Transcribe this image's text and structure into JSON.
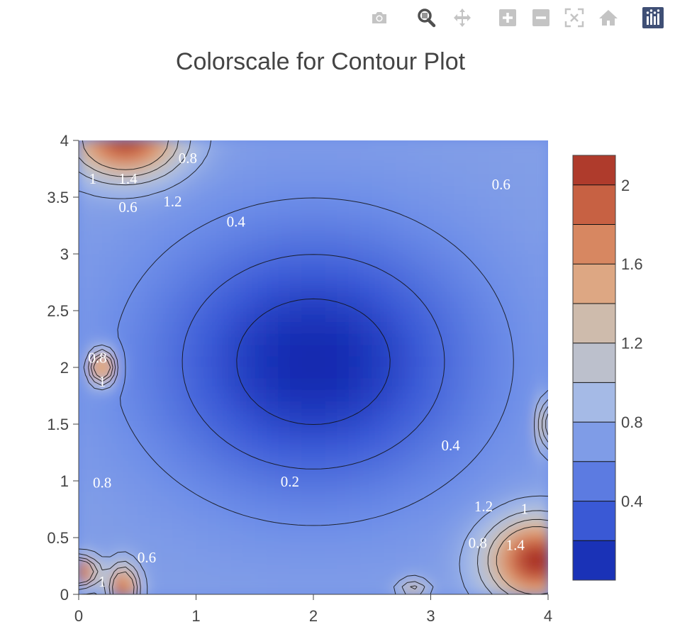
{
  "modebar": {
    "buttons": [
      {
        "name": "camera-icon",
        "title": "Download plot as a png"
      },
      {
        "name": "zoom-icon",
        "title": "Zoom"
      },
      {
        "name": "pan-icon",
        "title": "Pan"
      },
      {
        "name": "zoom-in-icon",
        "title": "Zoom in"
      },
      {
        "name": "zoom-out-icon",
        "title": "Zoom out"
      },
      {
        "name": "autoscale-icon",
        "title": "Autoscale"
      },
      {
        "name": "home-icon",
        "title": "Reset axes"
      },
      {
        "name": "plotly-logo-icon",
        "title": "Produced with Plotly"
      }
    ],
    "icon_color": "#c4c4c4",
    "active_color": "#505050",
    "logo_color": "#3f4f75"
  },
  "chart_data": {
    "type": "contour",
    "title": "Colorscale for Contour Plot",
    "xlabel": "",
    "ylabel": "",
    "xlim": [
      0,
      4
    ],
    "ylim": [
      0,
      4
    ],
    "x_ticks": [
      "0",
      "1",
      "2",
      "3",
      "4"
    ],
    "y_ticks": [
      "0",
      "0.5",
      "1",
      "1.5",
      "2",
      "2.5",
      "3",
      "3.5",
      "4"
    ],
    "colorbar": {
      "range": [
        0,
        2.15
      ],
      "ticks": [
        "0.4",
        "0.8",
        "1.2",
        "1.6",
        "2"
      ],
      "colorscale": [
        "#0a1fa8",
        "#3b5ad6",
        "#6f8fe8",
        "#a9bde6",
        "#c9c2ba",
        "#e0a47c",
        "#cf6e4a",
        "#a52a22"
      ]
    },
    "contour_levels": [
      0.2,
      0.4,
      0.6,
      0.8,
      1,
      1.2,
      1.4
    ],
    "contour_labels": [
      {
        "text": "1",
        "x": 0.12,
        "y": 3.65
      },
      {
        "text": "1.4",
        "x": 0.42,
        "y": 3.65
      },
      {
        "text": "0.8",
        "x": 0.93,
        "y": 3.83
      },
      {
        "text": "0.6",
        "x": 0.42,
        "y": 3.4
      },
      {
        "text": "1.2",
        "x": 0.8,
        "y": 3.45
      },
      {
        "text": "0.4",
        "x": 1.34,
        "y": 3.27
      },
      {
        "text": "0.6",
        "x": 3.6,
        "y": 3.6
      },
      {
        "text": "0.8",
        "x": 0.16,
        "y": 2.07
      },
      {
        "text": "1",
        "x": 0.2,
        "y": 1.86
      },
      {
        "text": "0.4",
        "x": 3.17,
        "y": 1.3
      },
      {
        "text": "0.8",
        "x": 0.2,
        "y": 0.97
      },
      {
        "text": "0.2",
        "x": 1.8,
        "y": 0.98
      },
      {
        "text": "1.2",
        "x": 3.45,
        "y": 0.76
      },
      {
        "text": "1",
        "x": 3.8,
        "y": 0.74
      },
      {
        "text": "0.8",
        "x": 3.4,
        "y": 0.44
      },
      {
        "text": "1.4",
        "x": 3.72,
        "y": 0.42
      },
      {
        "text": "0.6",
        "x": 0.58,
        "y": 0.31
      },
      {
        "text": "1",
        "x": 0.2,
        "y": 0.1
      }
    ],
    "features": [
      {
        "x": 2.0,
        "y": 2.05,
        "value": 0.05,
        "sx": 1.3,
        "sy": 1.1
      },
      {
        "x": 0.4,
        "y": 4.0,
        "value": 2.05,
        "sx": 0.45,
        "sy": 0.32
      },
      {
        "x": 0.2,
        "y": 2.0,
        "value": 2.0,
        "sx": 0.1,
        "sy": 0.14
      },
      {
        "x": 0.0,
        "y": 0.2,
        "value": 2.1,
        "sx": 0.15,
        "sy": 0.12
      },
      {
        "x": 0.38,
        "y": 0.05,
        "value": 1.95,
        "sx": 0.12,
        "sy": 0.2
      },
      {
        "x": 3.9,
        "y": 0.3,
        "value": 2.15,
        "sx": 0.4,
        "sy": 0.35
      },
      {
        "x": 4.0,
        "y": 1.5,
        "value": 1.6,
        "sx": 0.08,
        "sy": 0.22
      },
      {
        "x": 2.85,
        "y": 0.05,
        "value": 1.3,
        "sx": 0.12,
        "sy": 0.08
      }
    ]
  }
}
